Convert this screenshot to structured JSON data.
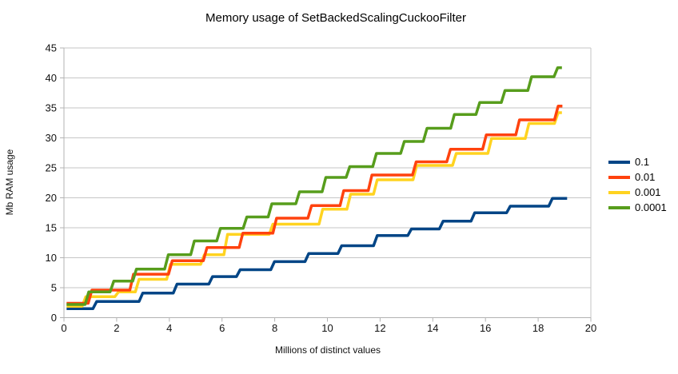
{
  "chart": {
    "title": "Memory usage of SetBackedScalingCuckooFilter",
    "y_axis_title": "Mb RAM usage",
    "x_axis_title": "Millions of distinct values",
    "colors": {
      "series_blue": "#004586",
      "series_red": "#FF420E",
      "series_yellow": "#FFD320",
      "series_green": "#579D1C",
      "gridline": "#c6c6c6",
      "axis": "#b3b3b3",
      "background": "#ffffff"
    }
  },
  "legend": {
    "items": [
      {
        "label": "0.1",
        "color": "#004586"
      },
      {
        "label": "0.01",
        "color": "#FF420E"
      },
      {
        "label": "0.001",
        "color": "#FFD320"
      },
      {
        "label": "0.0001",
        "color": "#579D1C"
      }
    ]
  },
  "chart_data": {
    "type": "line",
    "subtype": "step",
    "title": "Memory usage of SetBackedScalingCuckooFilter",
    "xlabel": "Millions of distinct values",
    "ylabel": "Mb RAM usage",
    "xlim": [
      0,
      20
    ],
    "ylim": [
      0,
      45
    ],
    "x_ticks": [
      0,
      2,
      4,
      6,
      8,
      10,
      12,
      14,
      16,
      18,
      20
    ],
    "y_ticks": [
      0,
      5,
      10,
      15,
      20,
      25,
      30,
      35,
      40,
      45
    ],
    "grid": "horizontal",
    "legend_position": "right",
    "series_note": "each series starts at [x,y]=start, holds level, then at each step [x,new_y] jumps to new_y, ending at end_x",
    "series": [
      {
        "name": "0.1",
        "color": "#004586",
        "start": [
          0.1,
          1.5
        ],
        "end_x": 19.1,
        "steps": [
          [
            1.15,
            2.7
          ],
          [
            2.9,
            4.1
          ],
          [
            4.2,
            5.6
          ],
          [
            5.55,
            6.85
          ],
          [
            6.6,
            8.0
          ],
          [
            7.9,
            9.35
          ],
          [
            9.2,
            10.7
          ],
          [
            10.45,
            12.0
          ],
          [
            11.8,
            13.7
          ],
          [
            13.1,
            14.8
          ],
          [
            14.3,
            16.1
          ],
          [
            15.5,
            17.5
          ],
          [
            16.85,
            18.6
          ],
          [
            18.45,
            19.9
          ]
        ]
      },
      {
        "name": "0.01",
        "color": "#FF420E",
        "start": [
          0.1,
          2.4
        ],
        "end_x": 18.92,
        "steps": [
          [
            0.97,
            4.6
          ],
          [
            2.55,
            7.25
          ],
          [
            4.02,
            9.5
          ],
          [
            5.34,
            11.7
          ],
          [
            6.7,
            14.1
          ],
          [
            7.98,
            16.6
          ],
          [
            9.31,
            18.7
          ],
          [
            10.53,
            21.2
          ],
          [
            11.6,
            23.8
          ],
          [
            13.28,
            26.0
          ],
          [
            14.58,
            28.1
          ],
          [
            15.94,
            30.5
          ],
          [
            17.2,
            33.0
          ],
          [
            18.67,
            35.3
          ]
        ]
      },
      {
        "name": "0.001",
        "color": "#FFD320",
        "start": [
          0.1,
          1.9
        ],
        "end_x": 18.9,
        "steps": [
          [
            0.74,
            3.5
          ],
          [
            1.98,
            4.3
          ],
          [
            2.76,
            6.4
          ],
          [
            3.95,
            8.9
          ],
          [
            5.24,
            10.5
          ],
          [
            6.12,
            13.9
          ],
          [
            7.84,
            15.6
          ],
          [
            9.73,
            18.1
          ],
          [
            10.79,
            20.6
          ],
          [
            11.8,
            23.0
          ],
          [
            13.3,
            25.4
          ],
          [
            14.8,
            27.4
          ],
          [
            16.14,
            29.9
          ],
          [
            17.56,
            32.4
          ],
          [
            18.67,
            34.2
          ]
        ]
      },
      {
        "name": "0.0001",
        "color": "#579D1C",
        "start": [
          0.1,
          2.2
        ],
        "end_x": 18.9,
        "steps": [
          [
            0.85,
            4.3
          ],
          [
            1.8,
            6.1
          ],
          [
            2.66,
            8.1
          ],
          [
            3.87,
            10.5
          ],
          [
            4.86,
            12.8
          ],
          [
            5.85,
            14.9
          ],
          [
            6.85,
            16.8
          ],
          [
            7.8,
            19.0
          ],
          [
            8.85,
            21.0
          ],
          [
            9.85,
            23.4
          ],
          [
            10.76,
            25.2
          ],
          [
            11.77,
            27.4
          ],
          [
            12.83,
            29.4
          ],
          [
            13.69,
            31.6
          ],
          [
            14.73,
            33.9
          ],
          [
            15.69,
            35.9
          ],
          [
            16.65,
            37.9
          ],
          [
            17.66,
            40.2
          ],
          [
            18.65,
            41.7
          ]
        ]
      }
    ]
  }
}
